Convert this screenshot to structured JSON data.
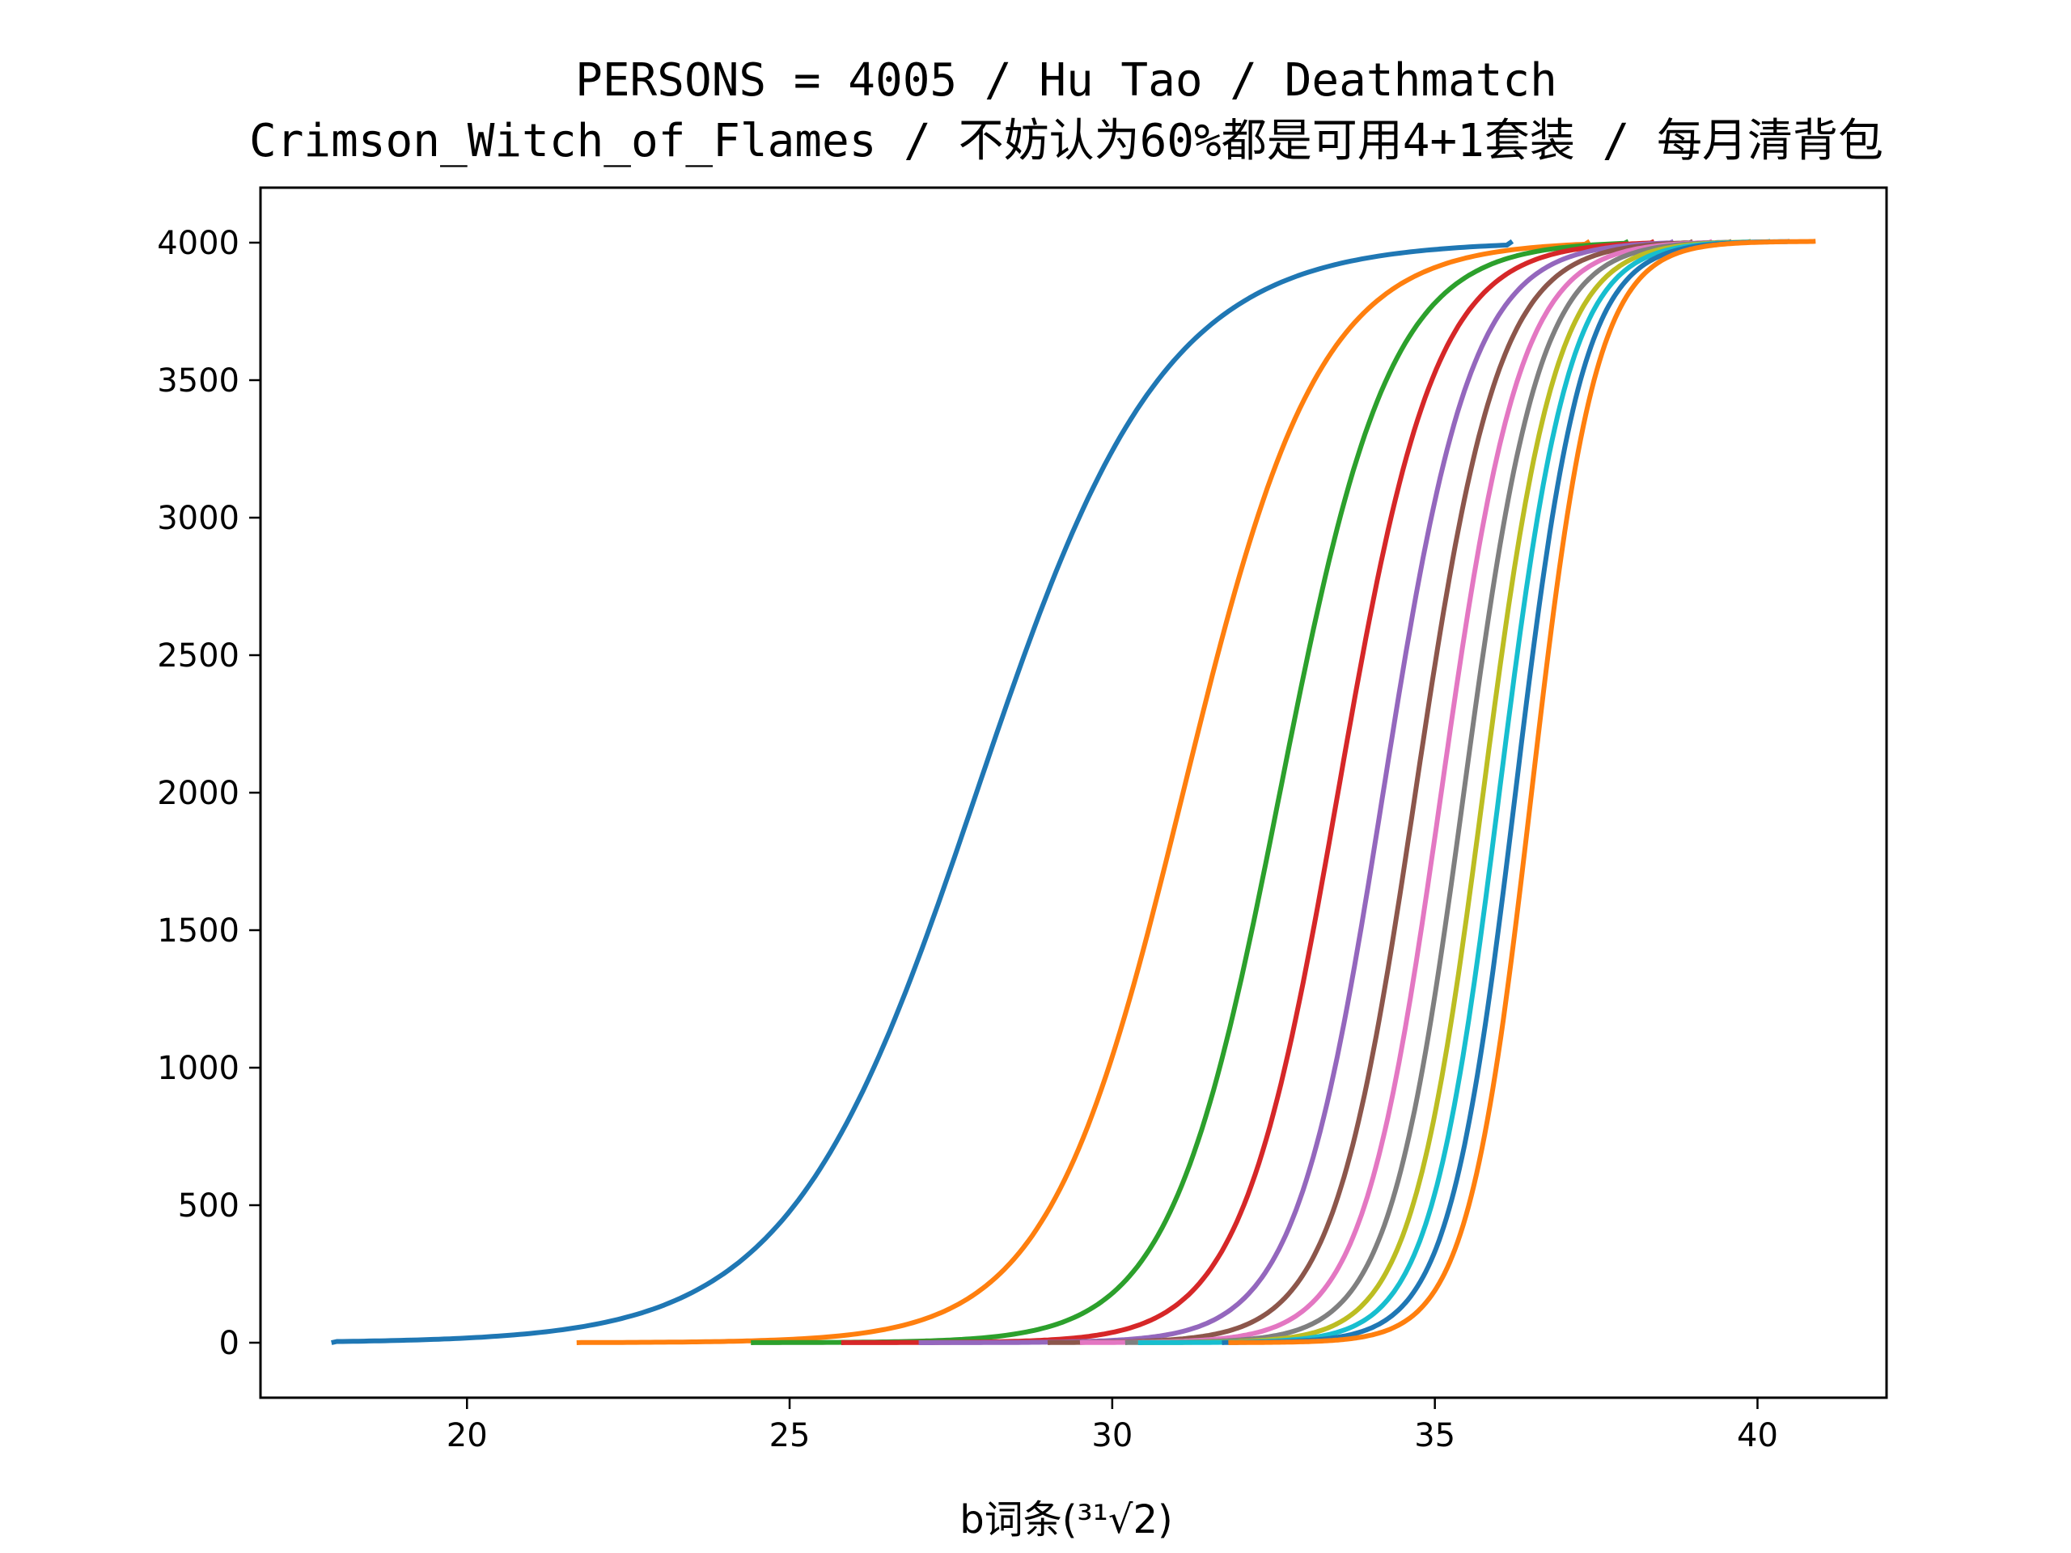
{
  "chart_data": {
    "type": "line",
    "title": "PERSONS = 4005 / Hu Tao / Deathmatch",
    "subtitle": "Crimson_Witch_of_Flames / 不妨认为60%都是可用4+1套装 / 每月清背包",
    "xlabel": "b词条(³¹√2)",
    "ylabel": "",
    "xlim": [
      16.8,
      42.0
    ],
    "ylim": [
      -200,
      4200
    ],
    "xticks": [
      20,
      25,
      30,
      35,
      40
    ],
    "yticks": [
      0,
      500,
      1000,
      1500,
      2000,
      2500,
      3000,
      3500,
      4000
    ],
    "grid": false,
    "legend": "none",
    "total": 4005,
    "series": [
      {
        "color": "#1f77b4",
        "x_min": 17.9,
        "x_max": 36.2,
        "median": 27.9,
        "scale": 1.45
      },
      {
        "color": "#ff7f0e",
        "x_min": 21.7,
        "x_max": 37.4,
        "median": 31.1,
        "scale": 1.05
      },
      {
        "color": "#2ca02c",
        "x_min": 24.4,
        "x_max": 38.0,
        "median": 32.6,
        "scale": 0.85
      },
      {
        "color": "#d62728",
        "x_min": 25.8,
        "x_max": 38.4,
        "median": 33.5,
        "scale": 0.75
      },
      {
        "color": "#9467bd",
        "x_min": 27.0,
        "x_max": 38.7,
        "median": 34.2,
        "scale": 0.68
      },
      {
        "color": "#8c564b",
        "x_min": 29.0,
        "x_max": 39.0,
        "median": 34.7,
        "scale": 0.64
      },
      {
        "color": "#e377c2",
        "x_min": 29.5,
        "x_max": 39.3,
        "median": 35.1,
        "scale": 0.61
      },
      {
        "color": "#7f7f7f",
        "x_min": 30.2,
        "x_max": 39.6,
        "median": 35.45,
        "scale": 0.58
      },
      {
        "color": "#bcbd22",
        "x_min": 30.4,
        "x_max": 39.9,
        "median": 35.75,
        "scale": 0.56
      },
      {
        "color": "#17becf",
        "x_min": 30.4,
        "x_max": 40.2,
        "median": 36.0,
        "scale": 0.54
      },
      {
        "color": "#1f77b4",
        "x_min": 31.7,
        "x_max": 40.5,
        "median": 36.25,
        "scale": 0.52
      },
      {
        "color": "#ff7f0e",
        "x_min": 31.8,
        "x_max": 40.9,
        "median": 36.5,
        "scale": 0.5
      }
    ]
  }
}
